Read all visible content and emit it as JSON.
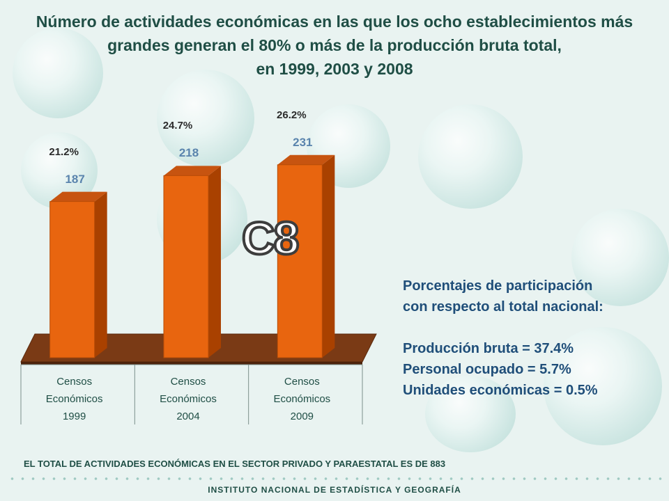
{
  "title_lines": [
    "Número de actividades económicas en las que los ocho establecimientos más",
    "grandes generan el 80% o más de la producción bruta total,",
    "en 1999, 2003 y 2008"
  ],
  "chart_data": {
    "type": "bar",
    "title": "Número de actividades económicas en las que los ocho establecimientos más grandes generan el 80% o más de la producción bruta total, en 1999, 2003 y 2008",
    "categories": [
      "Censos Económicos 1999",
      "Censos Económicos 2004",
      "Censos Económicos 2009"
    ],
    "category_lines": [
      [
        "Censos",
        "Económicos",
        "1999"
      ],
      [
        "Censos",
        "Económicos",
        "2004"
      ],
      [
        "Censos",
        "Económicos",
        "2009"
      ]
    ],
    "values": [
      187,
      218,
      231
    ],
    "value_labels": [
      "187",
      "218",
      "231"
    ],
    "percent_labels": [
      "21.2%",
      "24.7%",
      "26.2%"
    ],
    "xlabel": "",
    "ylabel": "",
    "ylim": [
      0,
      250
    ],
    "bar_color": "#e8650f",
    "bar_side_color": "#a94100",
    "floor_color": "#7a3a15"
  },
  "badge": "C8",
  "info": {
    "heading_line1": "Porcentajes de participación",
    "heading_line2": "con respecto al total nacional:",
    "line1": "Producción bruta = 37.4%",
    "line2": "Personal ocupado = 5.7%",
    "line3": "Unidades económicas = 0.5%"
  },
  "footer_note": "EL TOTAL DE ACTIVIDADES ECONÓMICAS EN EL SECTOR PRIVADO Y PARAESTATAL ES DE 883",
  "institute": "INSTITUTO NACIONAL DE ESTADÍSTICA Y GEOGRAFÍA"
}
